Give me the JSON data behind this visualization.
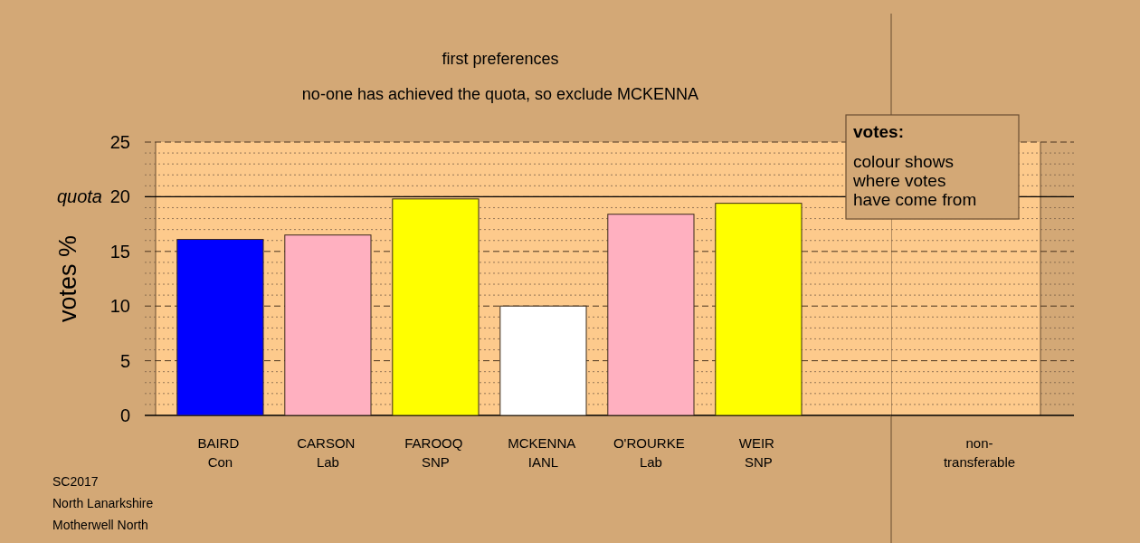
{
  "chart_data": [
    {
      "type": "bar",
      "title": "first preferences",
      "subtitle": "no-one has achieved the quota, so exclude MCKENNA",
      "ylabel": "votes %",
      "categories": [
        "BAIRD Con",
        "CARSON Lab",
        "FAROOQ SNP",
        "MCKENNA IANL",
        "O'ROURKE Lab",
        "WEIR SNP"
      ],
      "values": [
        16.1,
        16.5,
        19.8,
        10.0,
        18.4,
        19.4
      ],
      "colors": [
        "#0000ff",
        "#ffb0c0",
        "#ffff00",
        "#ffffff",
        "#ffb0c0",
        "#ffff00"
      ],
      "ylim": [
        0,
        25
      ],
      "yticks": [
        0,
        {
          "value": 1,
          "label": null
        },
        {
          "value": 2,
          "label": null
        },
        {
          "value": 3,
          "label": null
        },
        {
          "value": 4,
          "label": null
        },
        5,
        {
          "value": 6,
          "label": null
        },
        {
          "value": 7,
          "label": null
        },
        {
          "value": 8,
          "label": null
        },
        {
          "value": 9,
          "label": null
        },
        10,
        {
          "value": 11,
          "label": null
        },
        {
          "value": 12,
          "label": null
        },
        {
          "value": 13,
          "label": null
        },
        {
          "value": 14,
          "label": null
        },
        15,
        {
          "value": 16,
          "label": null
        },
        {
          "value": 17,
          "label": null
        },
        {
          "value": 18,
          "label": null
        },
        {
          "value": 19,
          "label": null
        },
        20,
        {
          "value": 21,
          "label": null
        },
        {
          "value": 22,
          "label": null
        },
        {
          "value": 23,
          "label": null
        },
        {
          "value": 24,
          "label": null
        },
        25
      ],
      "grid": true,
      "ref_lines": [
        {
          "axis": "y",
          "value": 20,
          "label": "quota",
          "color": "#000000"
        }
      ],
      "annotations": [
        "SC2017",
        "North Lanarkshire",
        "Motherwell North"
      ]
    },
    {
      "type": "bar",
      "categories": [
        "non-transferable"
      ],
      "values": [
        null
      ],
      "ylim": [
        0,
        25
      ],
      "yticks": [
        0,
        {
          "value": 1,
          "label": null
        },
        {
          "value": 2,
          "label": null
        },
        {
          "value": 3,
          "label": null
        },
        {
          "value": 4,
          "label": null
        },
        5,
        {
          "value": 6,
          "label": null
        },
        {
          "value": 7,
          "label": null
        },
        {
          "value": 8,
          "label": null
        },
        {
          "value": 9,
          "label": null
        },
        10,
        {
          "value": 11,
          "label": null
        },
        {
          "value": 12,
          "label": null
        },
        {
          "value": 13,
          "label": null
        },
        {
          "value": 14,
          "label": null
        },
        15,
        {
          "value": 16,
          "label": null
        },
        {
          "value": 17,
          "label": null
        },
        {
          "value": 18,
          "label": null
        },
        {
          "value": 19,
          "label": null
        },
        20,
        {
          "value": 21,
          "label": null
        },
        {
          "value": 22,
          "label": null
        },
        {
          "value": 23,
          "label": null
        },
        {
          "value": 24,
          "label": null
        },
        25
      ],
      "grid": true,
      "tick_labels": "x",
      "ref_lines": [
        {
          "axis": "y",
          "value": 20,
          "color": "#000000"
        }
      ],
      "annotations": [
        "votes:",
        "colour shows where votes have come from"
      ]
    }
  ]
}
